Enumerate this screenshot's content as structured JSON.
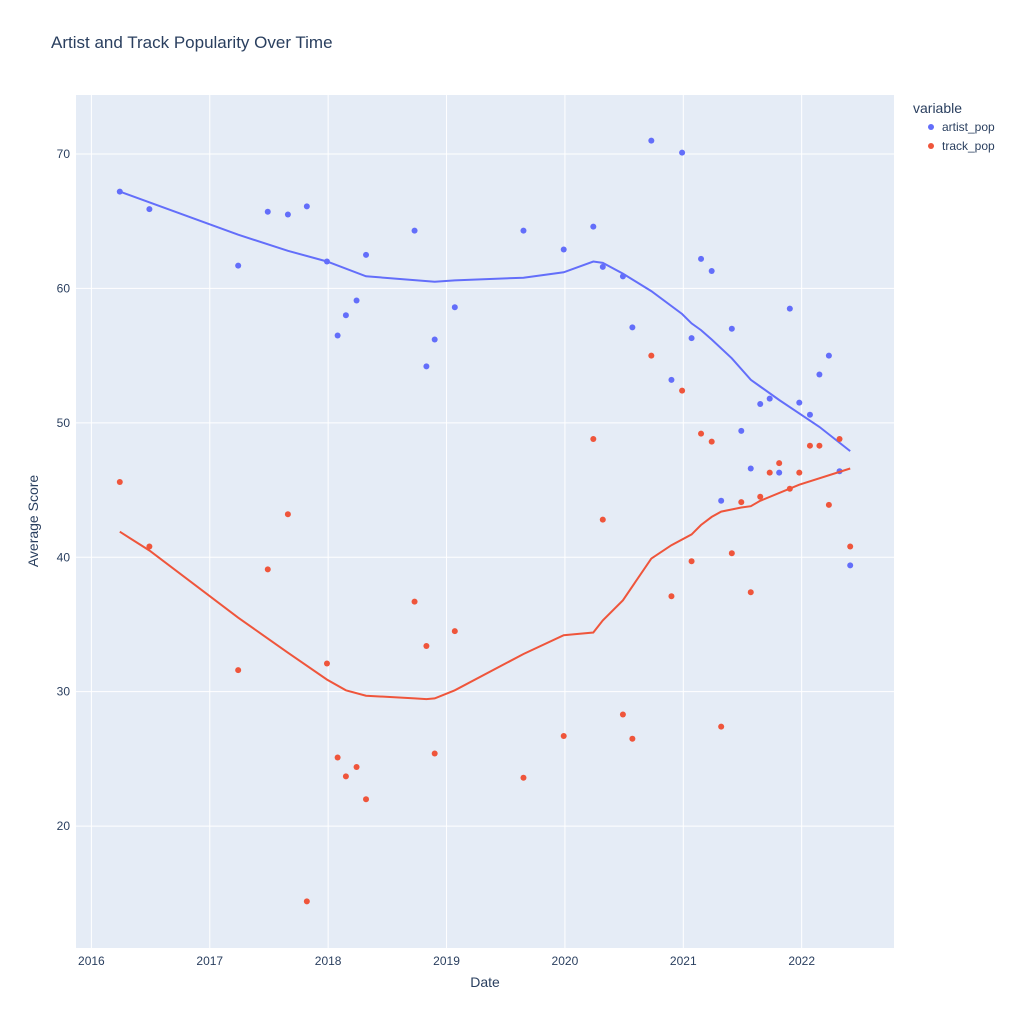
{
  "chart_data": {
    "type": "scatter",
    "title": "Artist and Track Popularity Over Time",
    "xlabel": "Date",
    "ylabel": "Average Score",
    "xlim": [
      2015.87,
      2022.78
    ],
    "ylim": [
      10.93,
      74.39
    ],
    "x_ticks": [
      2016,
      2017,
      2018,
      2019,
      2020,
      2021,
      2022
    ],
    "y_ticks": [
      20,
      30,
      40,
      50,
      60,
      70
    ],
    "grid": true,
    "legend": {
      "title": "variable",
      "placement": "top-right outside"
    },
    "x": [
      2016.24,
      2016.49,
      2017.24,
      2017.49,
      2017.66,
      2017.82,
      2017.99,
      2018.08,
      2018.15,
      2018.24,
      2018.32,
      2018.73,
      2018.83,
      2018.9,
      2019.07,
      2019.65,
      2019.99,
      2020.24,
      2020.32,
      2020.49,
      2020.57,
      2020.73,
      2020.9,
      2020.99,
      2021.07,
      2021.15,
      2021.24,
      2021.32,
      2021.41,
      2021.49,
      2021.57,
      2021.65,
      2021.73,
      2021.81,
      2021.9,
      2021.98,
      2022.07,
      2022.15,
      2022.23,
      2022.32,
      2022.41
    ],
    "series": [
      {
        "name": "artist_pop",
        "color": "#636efa",
        "values": [
          67.2,
          65.9,
          61.7,
          65.7,
          65.5,
          66.1,
          62.0,
          56.5,
          58.0,
          59.1,
          62.5,
          64.3,
          54.2,
          56.2,
          58.6,
          64.3,
          62.9,
          64.6,
          61.6,
          60.9,
          57.1,
          71.0,
          53.2,
          70.1,
          56.3,
          62.2,
          61.3,
          44.2,
          57.0,
          49.4,
          46.6,
          51.4,
          51.8,
          46.3,
          58.5,
          51.5,
          50.6,
          53.6,
          55.0,
          46.4,
          39.4
        ],
        "trend": {
          "x": [
            2016.24,
            2017.24,
            2017.66,
            2017.99,
            2018.32,
            2018.9,
            2019.07,
            2019.65,
            2019.99,
            2020.24,
            2020.32,
            2020.49,
            2020.73,
            2020.99,
            2021.07,
            2021.15,
            2021.24,
            2021.41,
            2021.57,
            2021.65,
            2021.81,
            2021.98,
            2022.15,
            2022.41
          ],
          "y": [
            67.2,
            64.0,
            62.8,
            62.0,
            60.9,
            60.5,
            60.6,
            60.8,
            61.2,
            62.0,
            61.9,
            61.1,
            59.8,
            58.1,
            57.4,
            56.9,
            56.2,
            54.8,
            53.2,
            52.7,
            51.7,
            50.7,
            49.7,
            47.9
          ]
        }
      },
      {
        "name": "track_pop",
        "color": "#EF553B",
        "values": [
          45.6,
          40.8,
          31.6,
          39.1,
          43.2,
          14.4,
          32.1,
          25.1,
          23.7,
          24.4,
          22.0,
          36.7,
          33.4,
          25.4,
          34.5,
          23.6,
          26.7,
          48.8,
          42.8,
          28.3,
          26.5,
          55.0,
          37.1,
          52.4,
          39.7,
          49.2,
          48.6,
          27.4,
          40.3,
          44.1,
          37.4,
          44.5,
          46.3,
          47.0,
          45.1,
          46.3,
          48.3,
          48.3,
          43.9,
          48.8,
          40.8
        ],
        "trend": {
          "x": [
            2016.24,
            2016.49,
            2017.24,
            2017.66,
            2017.99,
            2018.15,
            2018.32,
            2018.73,
            2018.83,
            2018.9,
            2019.07,
            2019.65,
            2019.99,
            2020.24,
            2020.32,
            2020.49,
            2020.73,
            2020.9,
            2021.07,
            2021.15,
            2021.24,
            2021.32,
            2021.49,
            2021.57,
            2021.65,
            2021.98,
            2022.41
          ],
          "y": [
            41.9,
            40.5,
            35.5,
            32.9,
            30.9,
            30.1,
            29.7,
            29.5,
            29.45,
            29.5,
            30.1,
            32.8,
            34.2,
            34.4,
            35.3,
            36.8,
            39.9,
            40.9,
            41.7,
            42.4,
            43.0,
            43.4,
            43.7,
            43.8,
            44.2,
            45.4,
            46.6
          ]
        }
      }
    ]
  }
}
